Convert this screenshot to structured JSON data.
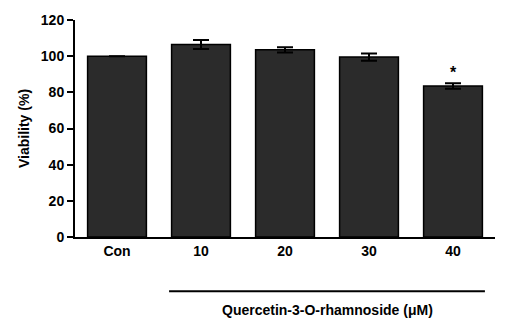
{
  "chart_data": {
    "type": "bar",
    "ylabel": "Viability (%)",
    "xlabel": "Quercetin-3-O-rhamnoside (μM)",
    "categories": [
      "Con",
      "10",
      "20",
      "30",
      "40"
    ],
    "values": [
      100,
      106.5,
      103.5,
      99.5,
      83.5
    ],
    "errors": [
      0,
      2.5,
      1.5,
      2,
      1.5
    ],
    "color": "#2b2b2b",
    "ylim": [
      0,
      120
    ],
    "yticks": [
      0,
      20,
      40,
      60,
      80,
      100,
      120
    ],
    "grid": false,
    "annotations": [
      {
        "text": "*",
        "category": "40"
      }
    ]
  }
}
